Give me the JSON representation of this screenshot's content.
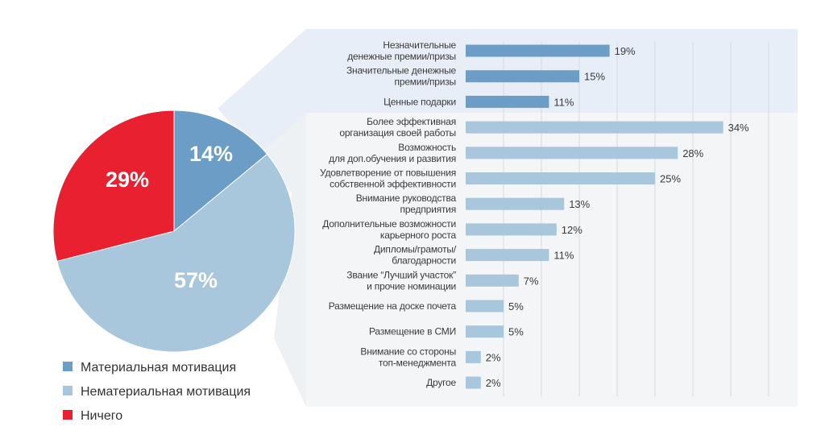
{
  "chart_data": [
    {
      "type": "pie",
      "title": "",
      "slices": [
        {
          "label": "Материальная мотивация",
          "value": 14,
          "display": "14%",
          "color": "#6b9dc7"
        },
        {
          "label": "Нематериальная мотивация",
          "value": 57,
          "display": "57%",
          "color": "#a8c6dc"
        },
        {
          "label": "Ничего",
          "value": 29,
          "display": "29%",
          "color": "#e8202f"
        }
      ],
      "legend": "bottom-left"
    },
    {
      "type": "bar",
      "orientation": "horizontal",
      "xlim": [
        0,
        40
      ],
      "grid": true,
      "categories": [
        {
          "label": [
            "Незначительные",
            "денежные премии/призы"
          ],
          "value": 19,
          "display": "19%",
          "group": "material"
        },
        {
          "label": [
            "Значительные денежные",
            "премии/призы"
          ],
          "value": 15,
          "display": "15%",
          "group": "material"
        },
        {
          "label": [
            "Ценные подарки"
          ],
          "value": 11,
          "display": "11%",
          "group": "material"
        },
        {
          "label": [
            "Более эффективная",
            "организация своей работы"
          ],
          "value": 34,
          "display": "34%",
          "group": "nonmaterial"
        },
        {
          "label": [
            "Возможность",
            "для доп.обучения и развития"
          ],
          "value": 28,
          "display": "28%",
          "group": "nonmaterial"
        },
        {
          "label": [
            "Удовлетворение от повышения",
            "собственной эффективности"
          ],
          "value": 25,
          "display": "25%",
          "group": "nonmaterial"
        },
        {
          "label": [
            "Внимание руководства",
            "предприятия"
          ],
          "value": 13,
          "display": "13%",
          "group": "nonmaterial"
        },
        {
          "label": [
            "Дополнительные возможности",
            "карьерного роста"
          ],
          "value": 12,
          "display": "12%",
          "group": "nonmaterial"
        },
        {
          "label": [
            "Дипломы/грамоты/",
            "благодарности"
          ],
          "value": 11,
          "display": "11%",
          "group": "nonmaterial"
        },
        {
          "label": [
            "Звание “Лучший участок”",
            "и прочие номинации"
          ],
          "value": 7,
          "display": "7%",
          "group": "nonmaterial"
        },
        {
          "label": [
            "Размещение на доске почета"
          ],
          "value": 5,
          "display": "5%",
          "group": "nonmaterial"
        },
        {
          "label": [
            "Размещение в СМИ"
          ],
          "value": 5,
          "display": "5%",
          "group": "nonmaterial"
        },
        {
          "label": [
            "Внимание со стороны",
            "топ-менеджмента"
          ],
          "value": 2,
          "display": "2%",
          "group": "nonmaterial"
        },
        {
          "label": [
            "Другое"
          ],
          "value": 2,
          "display": "2%",
          "group": "nonmaterial"
        }
      ],
      "colors": {
        "material": "#6b9dc7",
        "nonmaterial": "#a8c6dc"
      }
    }
  ]
}
